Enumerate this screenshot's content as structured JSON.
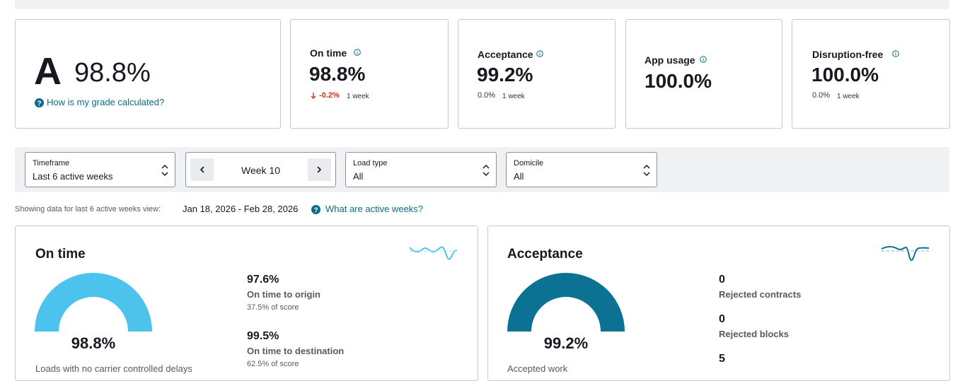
{
  "top_cards": {
    "grade": {
      "letter": "A",
      "score": "98.8%",
      "link": "How is my grade calculated?"
    },
    "metrics": [
      {
        "label": "On time",
        "value": "98.8%",
        "change": "-0.2%",
        "period": "1 week"
      },
      {
        "label": "Acceptance",
        "value": "99.2%",
        "change": "0.0%",
        "period": "1 week"
      },
      {
        "label": "App usage",
        "value": "100.0%"
      },
      {
        "label": "Disruption-free",
        "value": "100.0%",
        "change": "0.0%",
        "period": "1 week"
      }
    ]
  },
  "filters": {
    "timeframe": {
      "label": "Timeframe",
      "value": "Last 6 active weeks"
    },
    "week": "Week 10",
    "load_type": {
      "label": "Load type",
      "value": "All"
    },
    "domicile": {
      "label": "Domicile",
      "value": "All"
    }
  },
  "date_range": {
    "prefix": "Showing data for last 6 active weeks view:",
    "range": "Jan 18, 2026 - Feb 28, 2026",
    "link": "What are active weeks?"
  },
  "panels": [
    {
      "title": "On time",
      "gauge_value": "98.8%",
      "footer": "Loads with no carrier controlled delays",
      "stats": [
        {
          "value": "97.6%",
          "label": "On time to origin",
          "note": "37.5% of score"
        },
        {
          "value": "99.5%",
          "label": "On time to destination",
          "note": "62.5% of score"
        }
      ]
    },
    {
      "title": "Acceptance",
      "gauge_value": "99.2%",
      "footer": "Accepted work",
      "stats": [
        {
          "value": "0",
          "label": "Rejected contracts"
        },
        {
          "value": "0",
          "label": "Rejected blocks"
        },
        {
          "value": "5"
        }
      ]
    }
  ]
}
